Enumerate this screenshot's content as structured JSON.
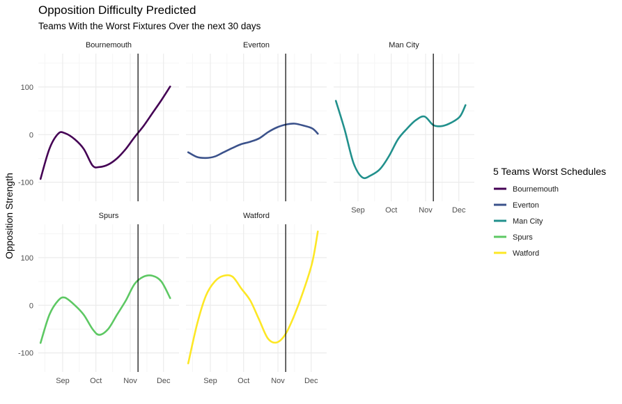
{
  "colors": {
    "Bournemouth": "#440154",
    "Everton": "#3b528b",
    "Man City": "#21908c",
    "Spurs": "#5dc863",
    "Watford": "#fde725",
    "grid_major": "#ebebeb",
    "grid_minor": "#f5f5f5",
    "vline": "#000000"
  },
  "chart_data": {
    "type": "line",
    "faceted": true,
    "title": "Opposition Difficulty Predicted",
    "subtitle": "Teams With the Worst Fixtures Over the next 30 days",
    "ylabel": "Opposition Strength",
    "xlabel": "",
    "x_unit": "date",
    "xlim": [
      "2018-08-10",
      "2018-12-15"
    ],
    "ylim": [
      -140,
      170
    ],
    "x_ticks": [
      {
        "label": "Sep",
        "date": "2018-09-01"
      },
      {
        "label": "Oct",
        "date": "2018-10-01"
      },
      {
        "label": "Nov",
        "date": "2018-11-01"
      },
      {
        "label": "Dec",
        "date": "2018-12-01"
      }
    ],
    "y_ticks": [
      -100,
      0,
      100
    ],
    "reference_line": {
      "date": "2018-11-08"
    },
    "legend": {
      "title": "5 Teams Worst Schedules",
      "position": "right",
      "entries": [
        "Bournemouth",
        "Everton",
        "Man City",
        "Spurs",
        "Watford"
      ]
    },
    "series": [
      {
        "name": "Bournemouth",
        "points": [
          [
            "2018-08-12",
            -93
          ],
          [
            "2018-08-20",
            -30
          ],
          [
            "2018-08-28",
            2
          ],
          [
            "2018-09-03",
            3
          ],
          [
            "2018-09-12",
            -10
          ],
          [
            "2018-09-20",
            -30
          ],
          [
            "2018-09-28",
            -65
          ],
          [
            "2018-10-04",
            -68
          ],
          [
            "2018-10-12",
            -63
          ],
          [
            "2018-10-20",
            -50
          ],
          [
            "2018-10-28",
            -30
          ],
          [
            "2018-11-05",
            -5
          ],
          [
            "2018-11-13",
            18
          ],
          [
            "2018-11-21",
            45
          ],
          [
            "2018-11-29",
            72
          ],
          [
            "2018-12-07",
            101
          ]
        ]
      },
      {
        "name": "Everton",
        "points": [
          [
            "2018-08-12",
            -37
          ],
          [
            "2018-08-20",
            -47
          ],
          [
            "2018-08-28",
            -49
          ],
          [
            "2018-09-05",
            -46
          ],
          [
            "2018-09-13",
            -37
          ],
          [
            "2018-09-21",
            -28
          ],
          [
            "2018-09-29",
            -20
          ],
          [
            "2018-10-07",
            -15
          ],
          [
            "2018-10-15",
            -8
          ],
          [
            "2018-10-23",
            5
          ],
          [
            "2018-10-31",
            15
          ],
          [
            "2018-11-08",
            21
          ],
          [
            "2018-11-16",
            23
          ],
          [
            "2018-11-24",
            19
          ],
          [
            "2018-12-02",
            13
          ],
          [
            "2018-12-07",
            2
          ]
        ]
      },
      {
        "name": "Man City",
        "points": [
          [
            "2018-08-12",
            71
          ],
          [
            "2018-08-20",
            10
          ],
          [
            "2018-08-28",
            -60
          ],
          [
            "2018-09-05",
            -90
          ],
          [
            "2018-09-13",
            -85
          ],
          [
            "2018-09-21",
            -72
          ],
          [
            "2018-09-29",
            -45
          ],
          [
            "2018-10-07",
            -10
          ],
          [
            "2018-10-15",
            12
          ],
          [
            "2018-10-23",
            30
          ],
          [
            "2018-10-31",
            38
          ],
          [
            "2018-11-08",
            20
          ],
          [
            "2018-11-16",
            18
          ],
          [
            "2018-11-24",
            25
          ],
          [
            "2018-12-02",
            38
          ],
          [
            "2018-12-07",
            62
          ]
        ]
      },
      {
        "name": "Spurs",
        "points": [
          [
            "2018-08-12",
            -79
          ],
          [
            "2018-08-20",
            -20
          ],
          [
            "2018-08-28",
            10
          ],
          [
            "2018-09-03",
            16
          ],
          [
            "2018-09-12",
            0
          ],
          [
            "2018-09-20",
            -20
          ],
          [
            "2018-09-28",
            -50
          ],
          [
            "2018-10-04",
            -62
          ],
          [
            "2018-10-12",
            -50
          ],
          [
            "2018-10-20",
            -20
          ],
          [
            "2018-10-28",
            10
          ],
          [
            "2018-11-05",
            45
          ],
          [
            "2018-11-13",
            60
          ],
          [
            "2018-11-21",
            62
          ],
          [
            "2018-11-29",
            50
          ],
          [
            "2018-12-07",
            15
          ]
        ]
      },
      {
        "name": "Watford",
        "points": [
          [
            "2018-08-12",
            -122
          ],
          [
            "2018-08-20",
            -40
          ],
          [
            "2018-08-28",
            20
          ],
          [
            "2018-09-05",
            50
          ],
          [
            "2018-09-13",
            62
          ],
          [
            "2018-09-21",
            60
          ],
          [
            "2018-09-29",
            35
          ],
          [
            "2018-10-07",
            10
          ],
          [
            "2018-10-15",
            -30
          ],
          [
            "2018-10-23",
            -70
          ],
          [
            "2018-10-31",
            -78
          ],
          [
            "2018-11-08",
            -60
          ],
          [
            "2018-11-16",
            -20
          ],
          [
            "2018-11-24",
            30
          ],
          [
            "2018-12-02",
            90
          ],
          [
            "2018-12-07",
            155
          ]
        ]
      }
    ]
  }
}
